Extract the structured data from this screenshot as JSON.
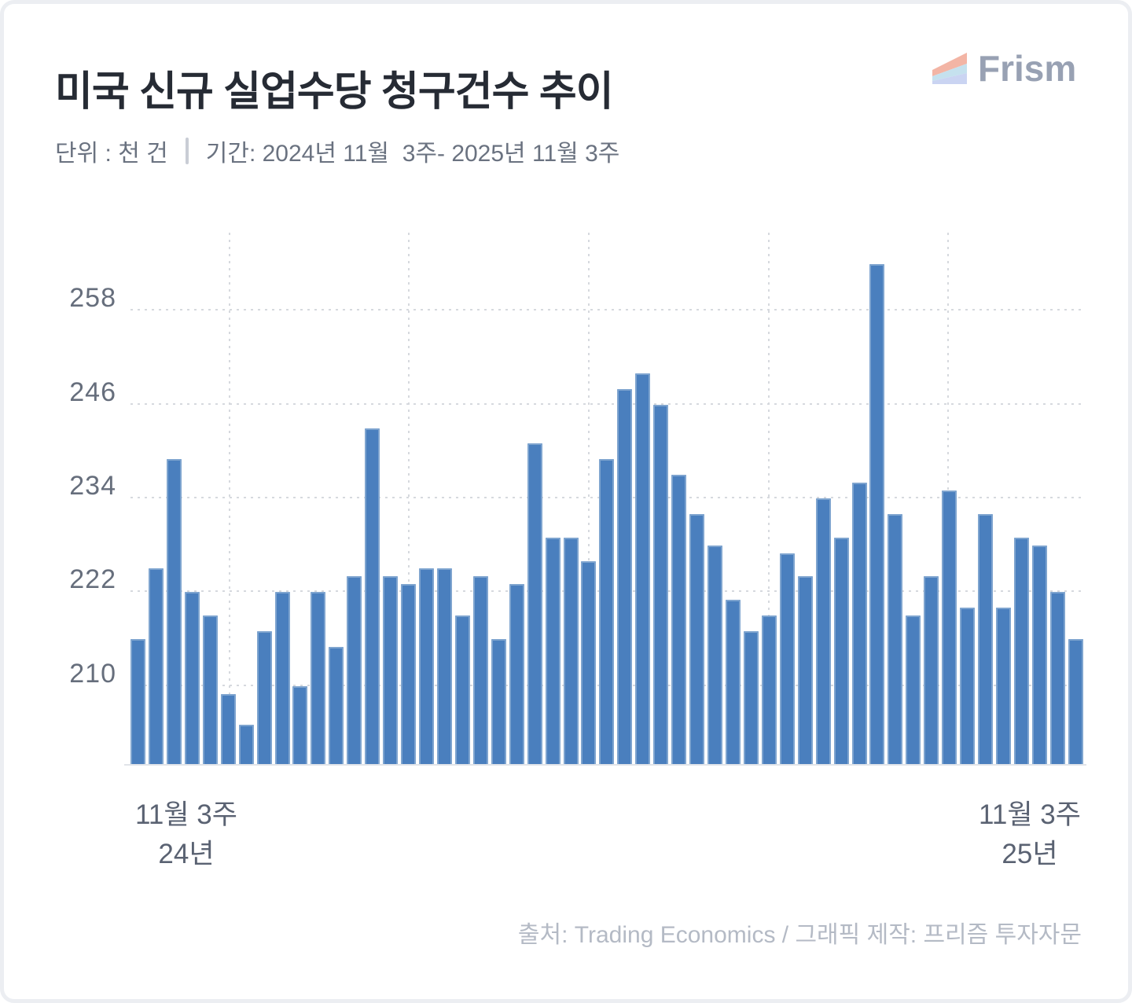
{
  "header": {
    "title": "미국 신규 실업수당 청구건수 추이",
    "unit_label": "단위 : 천 건",
    "period_label": "기간: 2024년 11월  3주- 2025년 11월 3주",
    "brand": "Frism",
    "brand_colors": {
      "stripe_top": "#f3b5a5",
      "stripe_middle": "#c5e1ee",
      "stripe_bottom": "#cad4f2",
      "text": "#98a1b3"
    }
  },
  "chart_data": {
    "type": "bar",
    "title": "미국 신규 실업수당 청구건수 추이",
    "unit": "천 건",
    "x_start": "2024년 11월 3주",
    "x_end": "2025년 11월 3주",
    "values": [
      216,
      225,
      239,
      222,
      219,
      209,
      205,
      217,
      222,
      210,
      222,
      215,
      224,
      243,
      224,
      223,
      225,
      225,
      219,
      224,
      216,
      223,
      241,
      229,
      229,
      226,
      239,
      248,
      250,
      246,
      237,
      232,
      228,
      221,
      217,
      219,
      227,
      224,
      234,
      229,
      236,
      264,
      232,
      219,
      224,
      235,
      220,
      232,
      220,
      229,
      228,
      222,
      216
    ],
    "y_ticks": [
      210,
      222,
      234,
      246,
      258
    ],
    "ylim": [
      200,
      267.6
    ],
    "grid": true,
    "x_gridline_at_bars": [
      6,
      16,
      26,
      36,
      46
    ],
    "x_tick_labels": {
      "start": [
        "11월 3주",
        "24년"
      ],
      "end": [
        "11월 3주",
        "25년"
      ]
    },
    "bar_color": "#4a7fbe",
    "bar_edge_color": "#7ea4cf",
    "legend_position": "none"
  },
  "footer": {
    "source": "출처: Trading Economics / 그래픽 제작: 프리즘 투자자문"
  }
}
